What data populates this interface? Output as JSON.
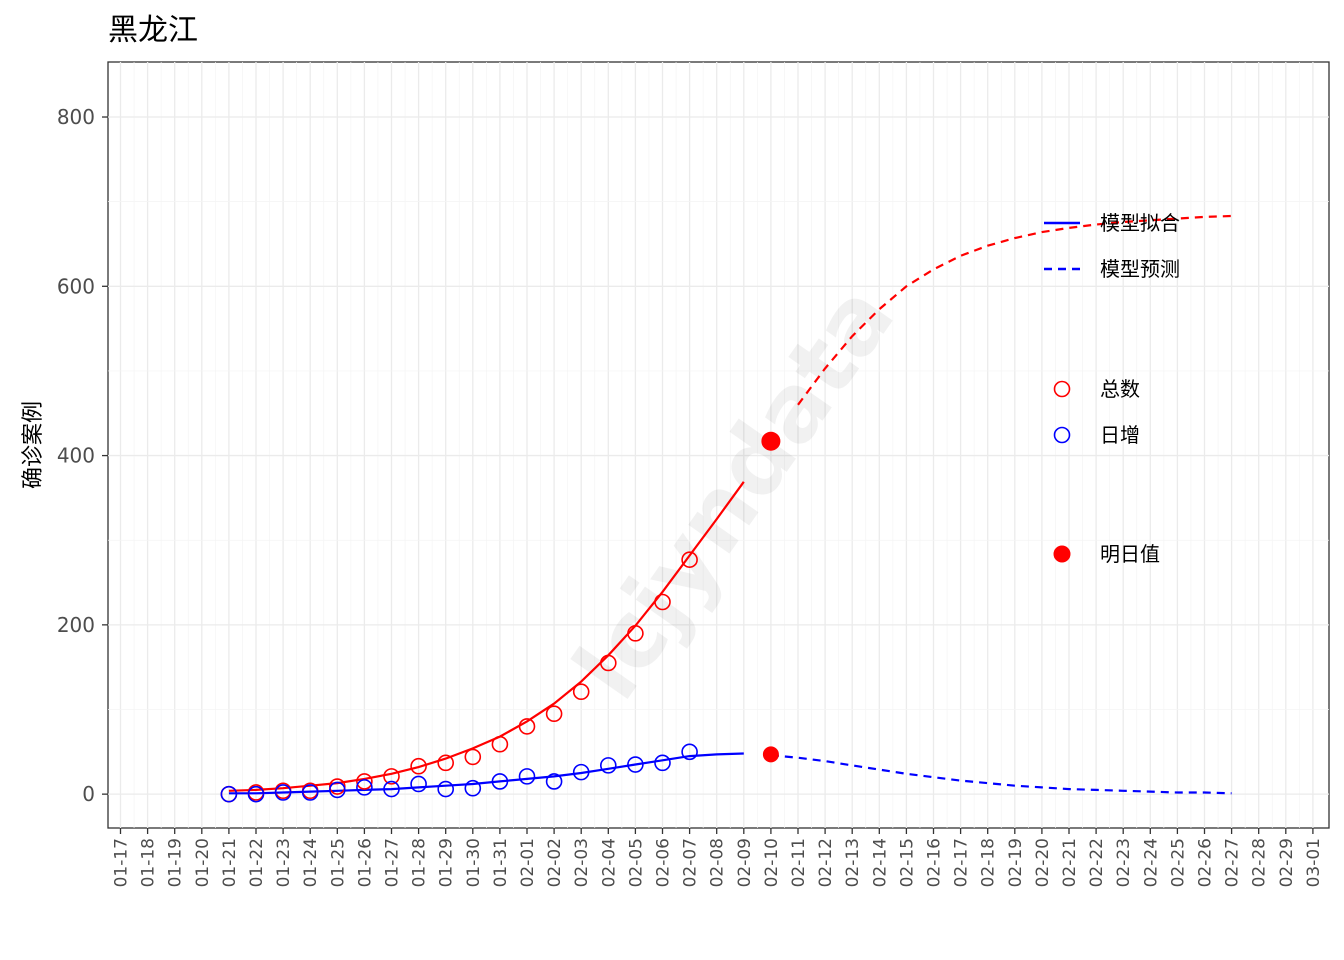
{
  "chart_data": {
    "type": "line",
    "title": "黑龙江",
    "ylabel": "确诊案例",
    "xlabel": "",
    "ylim": [
      -40,
      865
    ],
    "yticks": [
      0,
      200,
      400,
      600,
      800
    ],
    "x_ticks": [
      "01-17",
      "01-18",
      "01-19",
      "01-20",
      "01-21",
      "01-22",
      "01-23",
      "01-24",
      "01-25",
      "01-26",
      "01-27",
      "01-28",
      "01-29",
      "01-30",
      "01-31",
      "02-01",
      "02-02",
      "02-03",
      "02-04",
      "02-05",
      "02-06",
      "02-07",
      "02-08",
      "02-09",
      "02-10",
      "02-11",
      "02-12",
      "02-13",
      "02-14",
      "02-15",
      "02-16",
      "02-17",
      "02-18",
      "02-19",
      "02-20",
      "02-21",
      "02-22",
      "02-23",
      "02-24",
      "02-25",
      "02-26",
      "02-27",
      "02-28",
      "02-29",
      "03-01"
    ],
    "grid": true,
    "legend_position": "right",
    "legend": {
      "lines": [
        {
          "label": "模型拟合",
          "style": "solid",
          "color": "#0000ff"
        },
        {
          "label": "模型预测",
          "style": "dashed",
          "color": "#0000ff"
        }
      ],
      "points": [
        {
          "label": "总数",
          "style": "open-circle",
          "color": "#ff0000"
        },
        {
          "label": "日增",
          "style": "open-circle",
          "color": "#0000ff"
        }
      ],
      "tomorrow": {
        "label": "明日值",
        "style": "filled-circle",
        "color": "#ff0000"
      }
    },
    "observed_total": {
      "x": [
        "01-21",
        "01-22",
        "01-23",
        "01-24",
        "01-25",
        "01-26",
        "01-27",
        "01-28",
        "01-29",
        "01-30",
        "01-31",
        "02-01",
        "02-02",
        "02-03",
        "02-04",
        "02-05",
        "02-06",
        "02-07"
      ],
      "y": [
        0,
        2,
        4,
        4,
        9,
        15,
        21,
        33,
        37,
        44,
        59,
        80,
        95,
        121,
        155,
        190,
        227,
        277
      ],
      "color": "#ff0000"
    },
    "observed_daily": {
      "x": [
        "01-21",
        "01-22",
        "01-23",
        "01-24",
        "01-25",
        "01-26",
        "01-27",
        "01-28",
        "01-29",
        "01-30",
        "01-31",
        "02-01",
        "02-02",
        "02-03",
        "02-04",
        "02-05",
        "02-06",
        "02-07"
      ],
      "y": [
        0,
        0,
        2,
        2,
        5,
        8,
        6,
        12,
        6,
        7,
        15,
        21,
        15,
        26,
        34,
        35,
        37,
        50
      ],
      "color": "#0000ff"
    },
    "fit_total": {
      "x": [
        "01-21",
        "01-22",
        "01-23",
        "01-24",
        "01-25",
        "01-26",
        "01-27",
        "01-28",
        "01-29",
        "01-30",
        "01-31",
        "02-01",
        "02-02",
        "02-03",
        "02-04",
        "02-05",
        "02-06",
        "02-07",
        "02-08",
        "02-09"
      ],
      "y": [
        4,
        5,
        7,
        10,
        13,
        18,
        24,
        32,
        42,
        54,
        68,
        86,
        107,
        133,
        164,
        199,
        239,
        282,
        325,
        369
      ],
      "color": "#ff0000"
    },
    "fit_daily": {
      "x": [
        "01-21",
        "01-22",
        "01-23",
        "01-24",
        "01-25",
        "01-26",
        "01-27",
        "01-28",
        "01-29",
        "01-30",
        "01-31",
        "02-01",
        "02-02",
        "02-03",
        "02-04",
        "02-05",
        "02-06",
        "02-07",
        "02-08",
        "02-09"
      ],
      "y": [
        1,
        1,
        2,
        3,
        4,
        5,
        6,
        8,
        10,
        12,
        15,
        18,
        21,
        25,
        30,
        35,
        40,
        45,
        47,
        48
      ],
      "color": "#0000ff"
    },
    "pred_total": {
      "x": [
        "02-11",
        "02-12",
        "02-13",
        "02-14",
        "02-15",
        "02-16",
        "02-17",
        "02-18",
        "02-19",
        "02-20",
        "02-21",
        "02-22",
        "02-23",
        "02-24",
        "02-25",
        "02-26",
        "02-27"
      ],
      "y": [
        460,
        503,
        541,
        573,
        600,
        620,
        636,
        648,
        657,
        664,
        669,
        673,
        676,
        678,
        680,
        682,
        683
      ],
      "color": "#ff0000"
    },
    "pred_daily": {
      "x": [
        "02-10",
        "02-11",
        "02-12",
        "02-13",
        "02-14",
        "02-15",
        "02-16",
        "02-17",
        "02-18",
        "02-19",
        "02-20",
        "02-21",
        "02-22",
        "02-23",
        "02-24",
        "02-25",
        "02-26",
        "02-27"
      ],
      "y": [
        46,
        43,
        39,
        34,
        29,
        24,
        20,
        16,
        13,
        10,
        8,
        6,
        5,
        4,
        3,
        2,
        2,
        1
      ],
      "color": "#0000ff"
    },
    "tomorrow_total": {
      "x": "02-10",
      "y": 417,
      "color": "#ff0000"
    },
    "tomorrow_daily": {
      "x": "02-10",
      "y": 47,
      "color": "#ff0000"
    }
  }
}
